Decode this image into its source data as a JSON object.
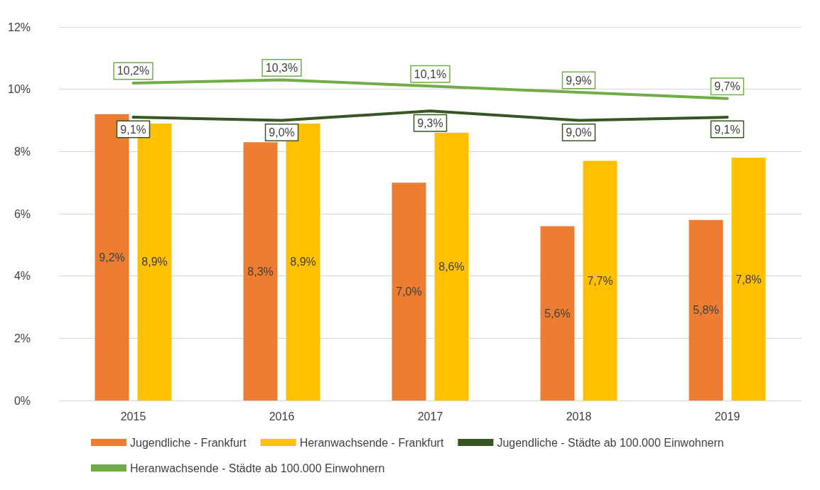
{
  "chart_data": {
    "type": "bar",
    "categories": [
      "2015",
      "2016",
      "2017",
      "2018",
      "2019"
    ],
    "series": [
      {
        "name": "Jugendliche - Frankfurt",
        "color": "#ed7d31",
        "values": [
          9.2,
          8.3,
          7.0,
          5.6,
          5.8
        ],
        "value_labels": [
          "9,2%",
          "8,3%",
          "7,0%",
          "5,6%",
          "5,8%"
        ]
      },
      {
        "name": "Heranwachsende - Frankfurt",
        "color": "#ffc000",
        "values": [
          8.9,
          8.9,
          8.6,
          7.7,
          7.8
        ],
        "value_labels": [
          "8,9%",
          "8,9%",
          "8,6%",
          "7,7%",
          "7,8%"
        ]
      },
      {
        "name": "Jugendliche - Städte ab 100.000 Einwohnern",
        "type": "line",
        "color": "#375623",
        "values": [
          9.1,
          9.0,
          9.3,
          9.0,
          9.1
        ],
        "value_labels": [
          "9,1%",
          "9,0%",
          "9,3%",
          "9,0%",
          "9,1%"
        ]
      },
      {
        "name": "Heranwachsende - Städte ab 100.000 Einwohnern",
        "type": "line",
        "color": "#70ad47",
        "values": [
          10.2,
          10.3,
          10.1,
          9.9,
          9.7
        ],
        "value_labels": [
          "10,2%",
          "10,3%",
          "10,1%",
          "9,9%",
          "9,7%"
        ]
      }
    ],
    "ylim": [
      0,
      12
    ],
    "yticks": [
      {
        "value": 0,
        "label": "0%"
      },
      {
        "value": 2,
        "label": "2%"
      },
      {
        "value": 4,
        "label": "4%"
      },
      {
        "value": 6,
        "label": "6%"
      },
      {
        "value": 8,
        "label": "8%"
      },
      {
        "value": 10,
        "label": "10%"
      },
      {
        "value": 12,
        "label": "12%"
      }
    ],
    "grid": "y",
    "legend": "bottom",
    "line_style": "solid"
  }
}
